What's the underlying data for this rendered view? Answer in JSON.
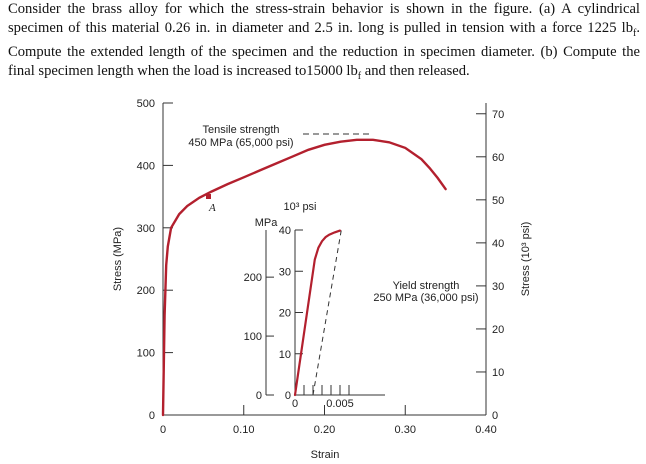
{
  "problem": {
    "text": "Consider the brass alloy for which the stress-strain behavior is shown in the figure. (a) A cylindrical specimen of this material 0.26 in. in diameter and 2.5 in. long is pulled in tension with a force 1225 lb",
    "force_sub": "f",
    "text2": ". Compute the extended length of the specimen and the reduction in specimen diameter. (b) Compute the final specimen length when the load is increased to15000 lb",
    "load_sub": "f",
    "text3": " and then released."
  },
  "chart_data": [
    {
      "type": "line",
      "name": "main",
      "xlabel": "Strain",
      "ylabel": "Stress (MPa)",
      "ylabel_right": "Stress (10³ psi)",
      "xlim": [
        0,
        0.4
      ],
      "ylim": [
        0,
        500
      ],
      "y2lim": [
        0,
        72.5
      ],
      "x_ticks": [
        {
          "value": 0,
          "label": "0"
        },
        {
          "value": 0.1,
          "label": "0.10"
        },
        {
          "value": 0.2,
          "label": "0.20"
        },
        {
          "value": 0.3,
          "label": "0.30"
        },
        {
          "value": 0.4,
          "label": "0.40"
        }
      ],
      "y_ticks": [
        {
          "value": 0,
          "label": "0"
        },
        {
          "value": 100,
          "label": "100"
        },
        {
          "value": 200,
          "label": "200"
        },
        {
          "value": 300,
          "label": "300"
        },
        {
          "value": 400,
          "label": "400"
        },
        {
          "value": 500,
          "label": "500"
        }
      ],
      "y2_ticks": [
        {
          "value": 0,
          "label": "0"
        },
        {
          "value": 10,
          "label": "10"
        },
        {
          "value": 20,
          "label": "20"
        },
        {
          "value": 30,
          "label": "30"
        },
        {
          "value": 40,
          "label": "40"
        },
        {
          "value": 50,
          "label": "50"
        },
        {
          "value": 60,
          "label": "60"
        },
        {
          "value": 70,
          "label": "70"
        }
      ],
      "series": [
        {
          "name": "stress-strain",
          "color": "#b3202e",
          "x": [
            0,
            0.002,
            0.004,
            0.006,
            0.01,
            0.02,
            0.03,
            0.045,
            0.06,
            0.08,
            0.1,
            0.12,
            0.14,
            0.16,
            0.18,
            0.2,
            0.22,
            0.24,
            0.26,
            0.28,
            0.3,
            0.32,
            0.33,
            0.34,
            0.35
          ],
          "y": [
            0,
            160,
            240,
            270,
            300,
            322,
            335,
            348,
            358,
            370,
            381,
            392,
            403,
            414,
            425,
            433,
            438,
            441,
            441,
            437,
            428,
            410,
            396,
            380,
            362
          ]
        }
      ],
      "annotations": [
        {
          "text": "Tensile strength",
          "x": 0.05,
          "y": 442
        },
        {
          "text": "450 MPa (65,000 psi)",
          "x": 0.05,
          "y": 428
        },
        {
          "text": "A",
          "x": 0.085,
          "y": 338
        }
      ]
    },
    {
      "type": "line",
      "name": "inset",
      "xlim": [
        0,
        0.01
      ],
      "ylim": [
        0,
        280
      ],
      "y2lim": [
        0,
        40
      ],
      "x_ticks": [
        {
          "value": 0,
          "label": "0"
        },
        {
          "value": 0.005,
          "label": "0.005"
        }
      ],
      "y_ticks": [
        {
          "value": 0,
          "label": "0"
        },
        {
          "value": 100,
          "label": "100"
        },
        {
          "value": 200,
          "label": "200"
        }
      ],
      "y2_ticks": [
        {
          "value": 0,
          "label": "0"
        },
        {
          "value": 10,
          "label": "10"
        },
        {
          "value": 20,
          "label": "20"
        },
        {
          "value": 30,
          "label": "30"
        },
        {
          "value": 40,
          "label": "40"
        }
      ],
      "y_unit": "MPa",
      "y2_unit": "10³ psi",
      "series": [
        {
          "name": "elastic-plastic",
          "color": "#b3202e",
          "x": [
            0,
            0.0022,
            0.0026,
            0.003,
            0.0034,
            0.0038,
            0.0044,
            0.005
          ],
          "y": [
            0,
            230,
            250,
            261,
            268,
            272,
            276,
            279
          ]
        }
      ],
      "offset_line": {
        "x": [
          0.002,
          0.0052
        ],
        "y": [
          0,
          285
        ]
      },
      "annotations": [
        {
          "text": "Yield strength",
          "x": 0.0044,
          "y": 158
        },
        {
          "text": "250 MPa (36,000 psi)",
          "x": 0.0033,
          "y": 145
        }
      ]
    }
  ]
}
